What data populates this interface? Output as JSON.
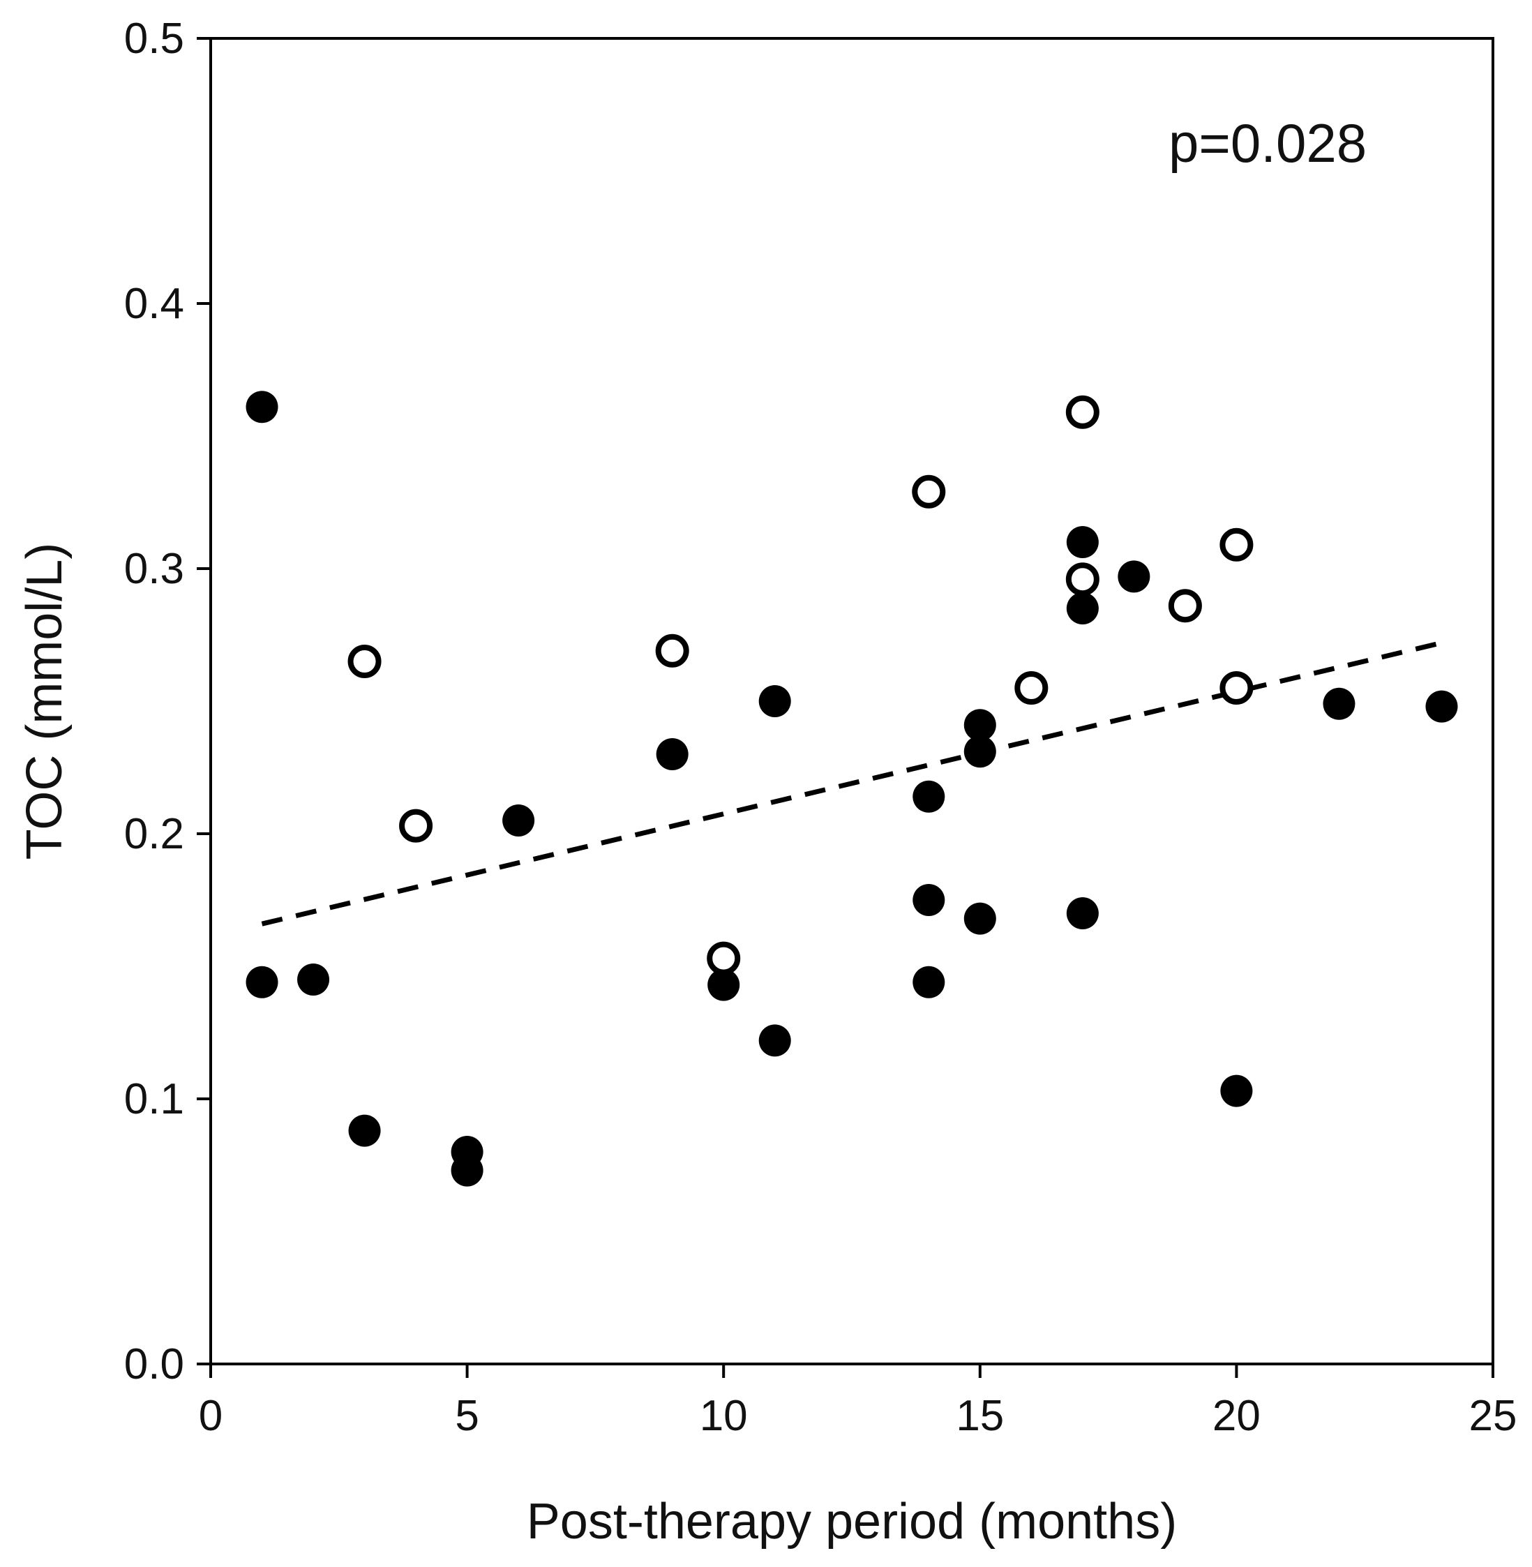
{
  "chart_data": {
    "type": "scatter",
    "title": "",
    "xlabel": "Post-therapy period (months)",
    "ylabel": "TOC (mmol/L)",
    "xlim": [
      0,
      25
    ],
    "ylim": [
      0.0,
      0.5
    ],
    "x_ticks": [
      "0",
      "5",
      "10",
      "15",
      "20",
      "25"
    ],
    "y_ticks": [
      "0.0",
      "0.1",
      "0.2",
      "0.3",
      "0.4",
      "0.5"
    ],
    "grid": false,
    "annotation": "p=0.028",
    "series": [
      {
        "name": "filled",
        "marker": "filled-circle",
        "color": "#000000",
        "x": [
          1,
          1,
          2,
          3,
          5,
          5,
          6,
          9,
          10,
          11,
          11,
          14,
          14,
          14,
          15,
          15,
          15,
          17,
          17,
          17,
          18,
          20,
          22,
          24
        ],
        "y": [
          0.361,
          0.144,
          0.145,
          0.088,
          0.08,
          0.073,
          0.205,
          0.23,
          0.143,
          0.25,
          0.122,
          0.214,
          0.175,
          0.144,
          0.241,
          0.231,
          0.168,
          0.31,
          0.285,
          0.17,
          0.297,
          0.103,
          0.249,
          0.248
        ]
      },
      {
        "name": "open",
        "marker": "open-circle",
        "color": "#000000",
        "x": [
          3,
          4,
          9,
          10,
          14,
          16,
          17,
          17,
          19,
          20,
          20
        ],
        "y": [
          0.265,
          0.203,
          0.269,
          0.153,
          0.329,
          0.255,
          0.359,
          0.296,
          0.286,
          0.309,
          0.255
        ]
      }
    ],
    "trendline": {
      "style": "dashed",
      "color": "#000000",
      "x": [
        1,
        24
      ],
      "y": [
        0.166,
        0.272
      ]
    }
  }
}
